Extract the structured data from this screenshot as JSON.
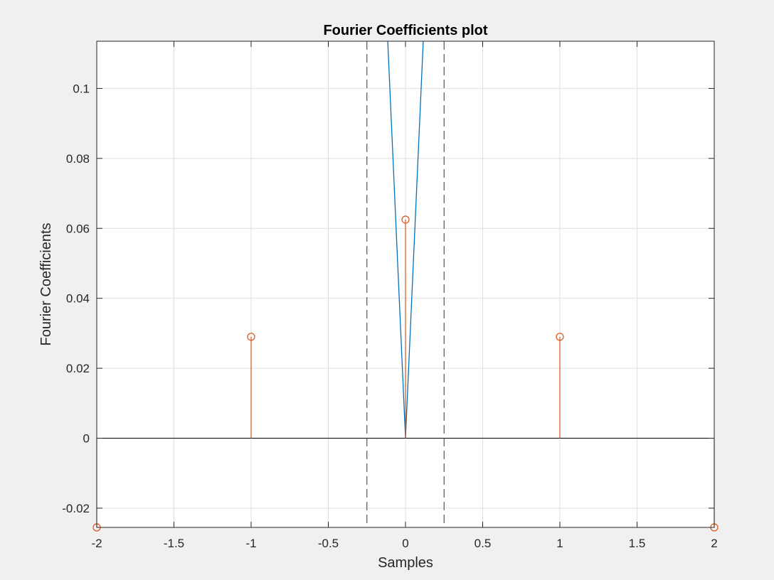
{
  "chart_data": {
    "type": "stem",
    "title": "Fourier Coefficients plot",
    "xlabel": "Samples",
    "ylabel": "Fourier Coefficients",
    "xlim": [
      -2,
      2
    ],
    "ylim": [
      -0.0255,
      0.1135
    ],
    "xticks": [
      -2,
      -1.5,
      -1,
      -0.5,
      0,
      0.5,
      1,
      1.5,
      2
    ],
    "xtick_labels": [
      "-2",
      "-1.5",
      "-1",
      "-0.5",
      "0",
      "0.5",
      "1",
      "1.5",
      "2"
    ],
    "yticks": [
      -0.02,
      0,
      0.02,
      0.04,
      0.06,
      0.08,
      0.1
    ],
    "ytick_labels": [
      "-0.02",
      "0",
      "0.02",
      "0.04",
      "0.06",
      "0.08",
      "0.1"
    ],
    "grid": true,
    "legend": "none",
    "stem_series": {
      "color": "#d95319",
      "x": [
        -2,
        -1,
        0,
        1,
        2
      ],
      "y": [
        -0.0255,
        0.029,
        0.0625,
        0.029,
        -0.0255
      ]
    },
    "line_series": {
      "color": "#0072bd",
      "x": [
        -0.115,
        0,
        0.115
      ],
      "y": [
        0.1135,
        0,
        0.1135
      ]
    },
    "vertical_dashed_lines": {
      "color": "#555555",
      "x": [
        -0.25,
        0.25
      ]
    },
    "zero_line": {
      "color": "#000000",
      "y": 0
    }
  }
}
